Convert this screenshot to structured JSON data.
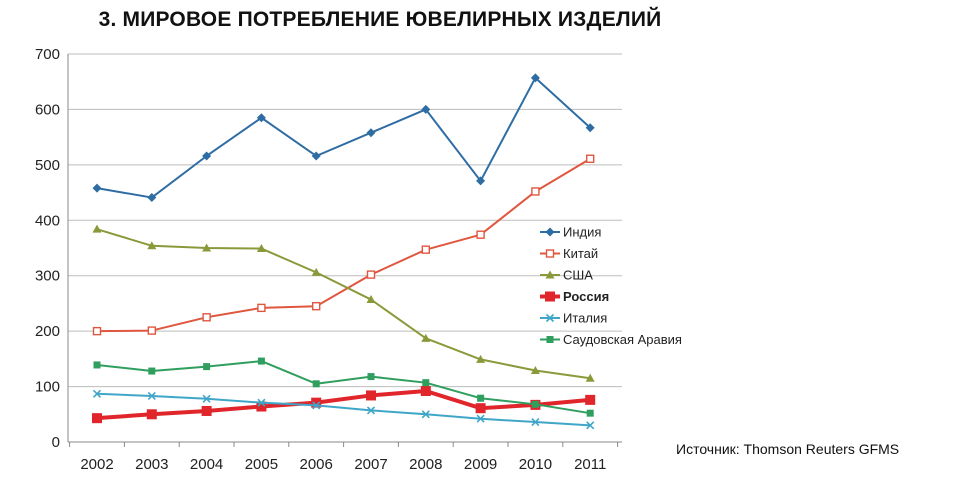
{
  "title": "3. МИРОВОЕ ПОТРЕБЛЕНИЕ ЮВЕЛИРНЫХ ИЗДЕЛИЙ",
  "source": "Источник: Thomson Reuters GFMS",
  "chart_data": {
    "type": "line",
    "title": "3. МИРОВОЕ ПОТРЕБЛЕНИЕ ЮВЕЛИРНЫХ ИЗДЕЛИЙ",
    "xlabel": "",
    "ylabel": "",
    "categories": [
      "2002",
      "2003",
      "2004",
      "2005",
      "2006",
      "2007",
      "2008",
      "2009",
      "2010",
      "2011"
    ],
    "ylim": [
      0,
      700
    ],
    "yticks": [
      0,
      100,
      200,
      300,
      400,
      500,
      600,
      700
    ],
    "grid": true,
    "legend_position": "right",
    "series": [
      {
        "name": "Индия",
        "color": "#2e6da4",
        "marker": "diamond",
        "bold": false,
        "values": [
          458,
          441,
          516,
          585,
          516,
          558,
          600,
          471,
          657,
          567
        ]
      },
      {
        "name": "Китай",
        "color": "#e0573f",
        "marker": "square-open",
        "bold": false,
        "values": [
          200,
          201,
          225,
          242,
          245,
          302,
          347,
          374,
          452,
          511
        ]
      },
      {
        "name": "США",
        "color": "#8a9a3a",
        "marker": "triangle",
        "bold": false,
        "values": [
          384,
          354,
          350,
          349,
          306,
          257,
          187,
          149,
          129,
          115
        ]
      },
      {
        "name": "Россия",
        "color": "#e0252b",
        "marker": "square",
        "bold": true,
        "values": [
          43,
          50,
          56,
          64,
          71,
          84,
          92,
          61,
          67,
          76
        ]
      },
      {
        "name": "Италия",
        "color": "#3fa6c8",
        "marker": "cross",
        "bold": false,
        "values": [
          87,
          83,
          78,
          71,
          66,
          57,
          50,
          42,
          36,
          30
        ]
      },
      {
        "name": "Саудовская Аравия",
        "color": "#2f9e5e",
        "marker": "square",
        "bold": false,
        "values": [
          139,
          128,
          136,
          146,
          105,
          118,
          107,
          79,
          68,
          52
        ]
      }
    ]
  }
}
